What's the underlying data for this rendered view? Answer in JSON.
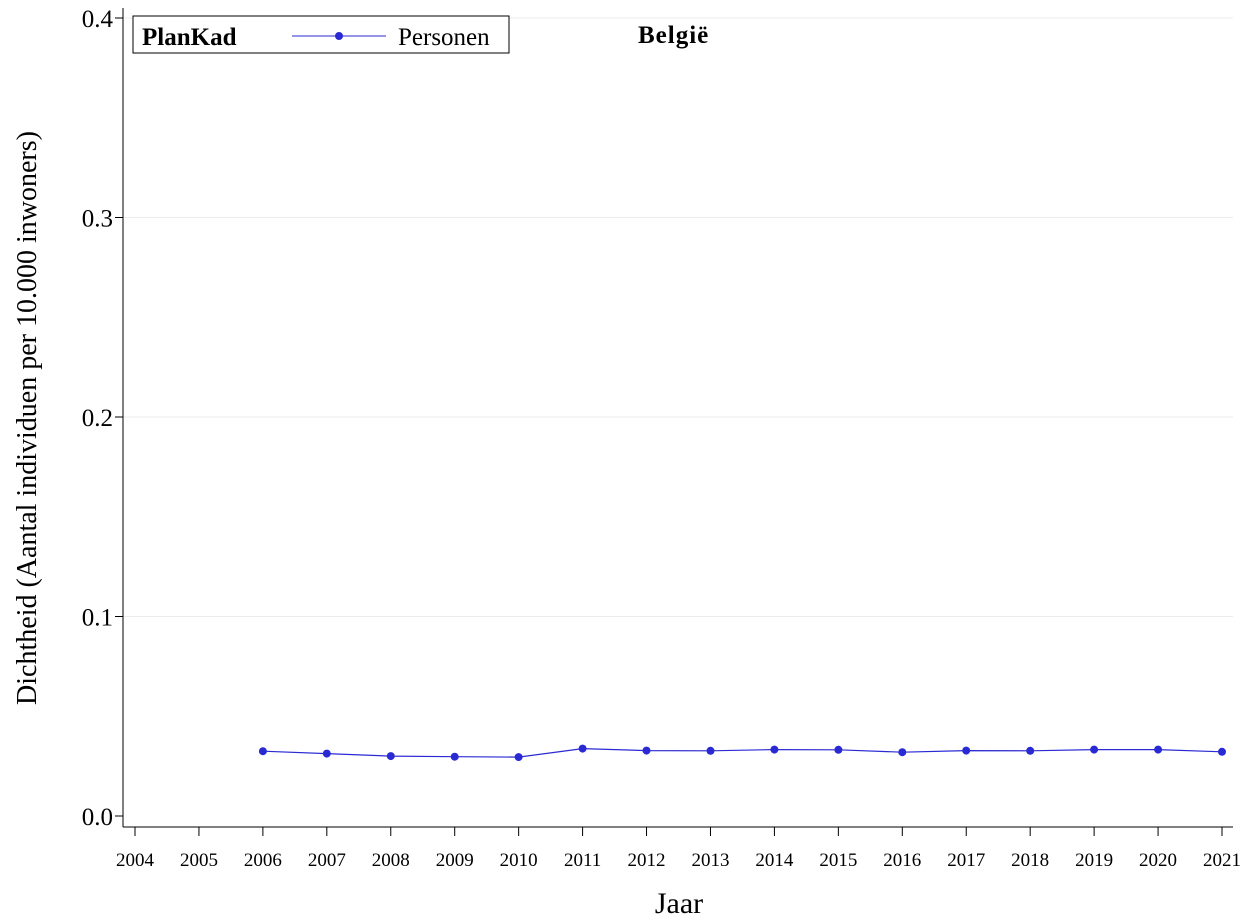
{
  "chart_data": {
    "type": "line",
    "title": "België",
    "xlabel": "Jaar",
    "ylabel": "Dichtheid (Aantal individuen per 10.000 inwoners)",
    "x_ticks": [
      "2004",
      "2005",
      "2006",
      "2007",
      "2008",
      "2009",
      "2010",
      "2011",
      "2012",
      "2013",
      "2014",
      "2015",
      "2016",
      "2017",
      "2018",
      "2019",
      "2020",
      "2021"
    ],
    "y_ticks": [
      "0.0",
      "0.1",
      "0.2",
      "0.3",
      "0.4"
    ],
    "xlim": [
      2004,
      2021
    ],
    "ylim": [
      0,
      0.4
    ],
    "grid": "horizontal",
    "legend": {
      "title": "PlanKad",
      "placement": "top-left"
    },
    "series": [
      {
        "name": "Personen",
        "color": "#2a2ad4",
        "x": [
          2006,
          2007,
          2008,
          2009,
          2010,
          2011,
          2012,
          2013,
          2014,
          2015,
          2016,
          2017,
          2018,
          2019,
          2020,
          2021
        ],
        "y": [
          0.0325,
          0.0313,
          0.03,
          0.0297,
          0.0295,
          0.0338,
          0.0328,
          0.0327,
          0.0333,
          0.0332,
          0.032,
          0.0328,
          0.0327,
          0.0333,
          0.0333,
          0.0322
        ]
      }
    ]
  }
}
